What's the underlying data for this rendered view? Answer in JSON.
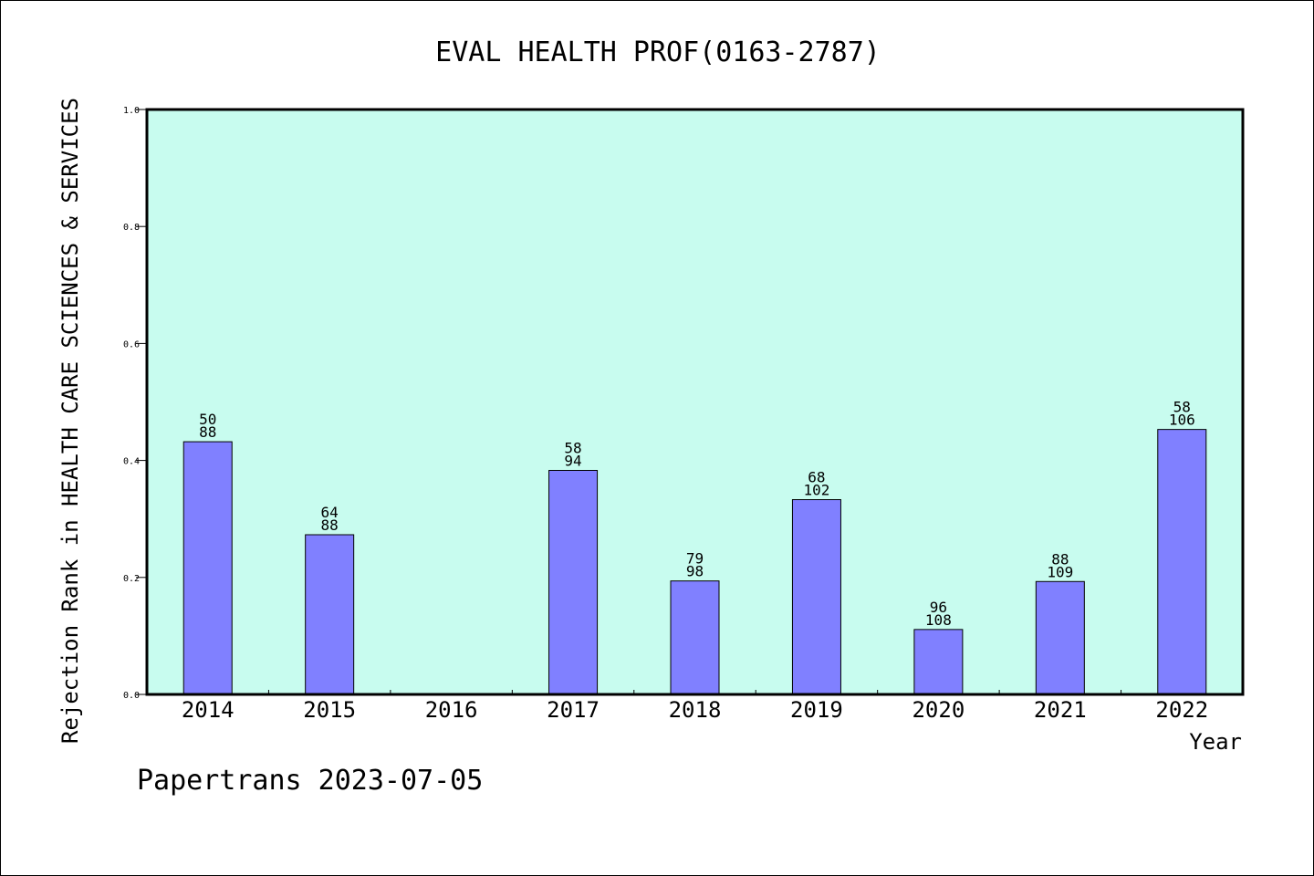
{
  "chart_data": {
    "type": "bar",
    "title": "EVAL HEALTH PROF(0163-2787)",
    "xlabel": "Year",
    "ylabel": "Rejection Rank in HEALTH CARE SCIENCES & SERVICES",
    "categories": [
      "2014",
      "2015",
      "2016",
      "2017",
      "2018",
      "2019",
      "2020",
      "2021",
      "2022"
    ],
    "values": [
      0.432,
      0.273,
      null,
      0.383,
      0.194,
      0.333,
      0.111,
      0.193,
      0.453
    ],
    "bar_labels": [
      {
        "rank": "50",
        "total": "88"
      },
      {
        "rank": "64",
        "total": "88"
      },
      null,
      {
        "rank": "58",
        "total": "94"
      },
      {
        "rank": "79",
        "total": "98"
      },
      {
        "rank": "68",
        "total": "102"
      },
      {
        "rank": "96",
        "total": "108"
      },
      {
        "rank": "88",
        "total": "109"
      },
      {
        "rank": "58",
        "total": "106"
      }
    ],
    "ylim": [
      0,
      1.0
    ],
    "yticks": [
      "0.0",
      "0.2",
      "0.4",
      "0.6",
      "0.8",
      "1.0"
    ],
    "grid": false,
    "colors": {
      "plot_background": "#c8fcef",
      "bar_fill": "#8080ff",
      "bar_stroke": "#000000"
    }
  },
  "footer": {
    "text": "Papertrans 2023-07-05"
  }
}
